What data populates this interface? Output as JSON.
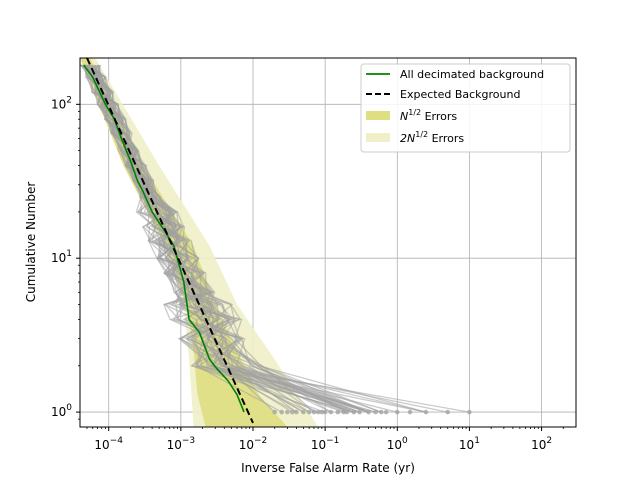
{
  "chart_data": {
    "type": "line",
    "xlabel": "Inverse False Alarm Rate (yr)",
    "ylabel": "Cumulative Number",
    "xscale": "log",
    "yscale": "log",
    "xlim": [
      4e-05,
      300
    ],
    "ylim": [
      0.8,
      200
    ],
    "grid": true,
    "legend_position": "top-right",
    "x_ticks": [
      {
        "value": 0.0001,
        "base": "10",
        "exp": "−4"
      },
      {
        "value": 0.001,
        "base": "10",
        "exp": "−3"
      },
      {
        "value": 0.01,
        "base": "10",
        "exp": "−2"
      },
      {
        "value": 0.1,
        "base": "10",
        "exp": "−1"
      },
      {
        "value": 1,
        "base": "10",
        "exp": "0"
      },
      {
        "value": 10,
        "base": "10",
        "exp": "1"
      },
      {
        "value": 100,
        "base": "10",
        "exp": "2"
      }
    ],
    "y_ticks": [
      {
        "value": 1,
        "base": "10",
        "exp": "0"
      },
      {
        "value": 10,
        "base": "10",
        "exp": "1"
      },
      {
        "value": 100,
        "base": "10",
        "exp": "2"
      }
    ],
    "legend": [
      {
        "key": "all_decimated",
        "label": "All decimated background",
        "style": "line",
        "color": "#008000"
      },
      {
        "key": "expected",
        "label": "Expected Background",
        "style": "dashed",
        "color": "#000000"
      },
      {
        "key": "sqrtN",
        "label_main": "N",
        "label_sup": "1/2",
        "label_rest": " Errors",
        "style": "patch",
        "color": "#dede82"
      },
      {
        "key": "two_sqrtN",
        "label_main": "2N",
        "label_sup": "1/2",
        "label_rest": " Errors",
        "style": "patch",
        "color": "#f0f0c8"
      }
    ],
    "series": [
      {
        "name": "All decimated background",
        "color": "#008000",
        "x": [
          4.5e-05,
          6e-05,
          9e-05,
          0.00012,
          0.00015,
          0.0002,
          0.00025,
          0.0003,
          0.0004,
          0.0006,
          0.0008,
          0.0011,
          0.0013,
          0.0018,
          0.0025,
          0.0032,
          0.0045,
          0.006,
          0.0075
        ],
        "y": [
          180,
          150,
          100,
          80,
          60,
          43,
          32,
          27,
          20,
          15,
          12,
          7,
          4,
          3.3,
          2.2,
          1.9,
          1.6,
          1.3,
          1
        ]
      },
      {
        "name": "Expected Background",
        "color": "#000000",
        "x": [
          5e-05,
          0.01
        ],
        "y": [
          200,
          0.85
        ]
      }
    ],
    "error_bands": {
      "sqrtN": {
        "color": "#dede82",
        "x_lo": [
          4e-05,
          0.00016,
          0.0006,
          0.0012,
          0.0015,
          0.0017,
          0.0022
        ],
        "x_hi": [
          5.5e-05,
          0.0003,
          0.0015,
          0.003,
          0.006,
          0.012,
          0.03
        ],
        "y": [
          200,
          40,
          12,
          5,
          2.5,
          1.3,
          0.8
        ]
      },
      "two_sqrtN": {
        "color": "#f0f0c8",
        "x_lo": [
          4e-05,
          0.00017,
          0.0006,
          0.0011,
          0.0013,
          0.0015
        ],
        "x_hi": [
          6.5e-05,
          0.0005,
          0.0025,
          0.006,
          0.02,
          0.08
        ],
        "y": [
          200,
          40,
          12,
          5,
          2.2,
          0.8
        ]
      }
    },
    "background_realizations": {
      "color": "#a0a0a0",
      "count": 45,
      "count_min_far": 1
    },
    "count_one_points": {
      "color": "#a0a0a0",
      "x": [
        0.02,
        0.025,
        0.03,
        0.035,
        0.04,
        0.05,
        0.06,
        0.07,
        0.08,
        0.09,
        0.1,
        0.12,
        0.15,
        0.18,
        0.2,
        0.25,
        0.3,
        0.4,
        0.5,
        0.6,
        0.7,
        1.0,
        1.5,
        2.5,
        5,
        10
      ]
    }
  }
}
